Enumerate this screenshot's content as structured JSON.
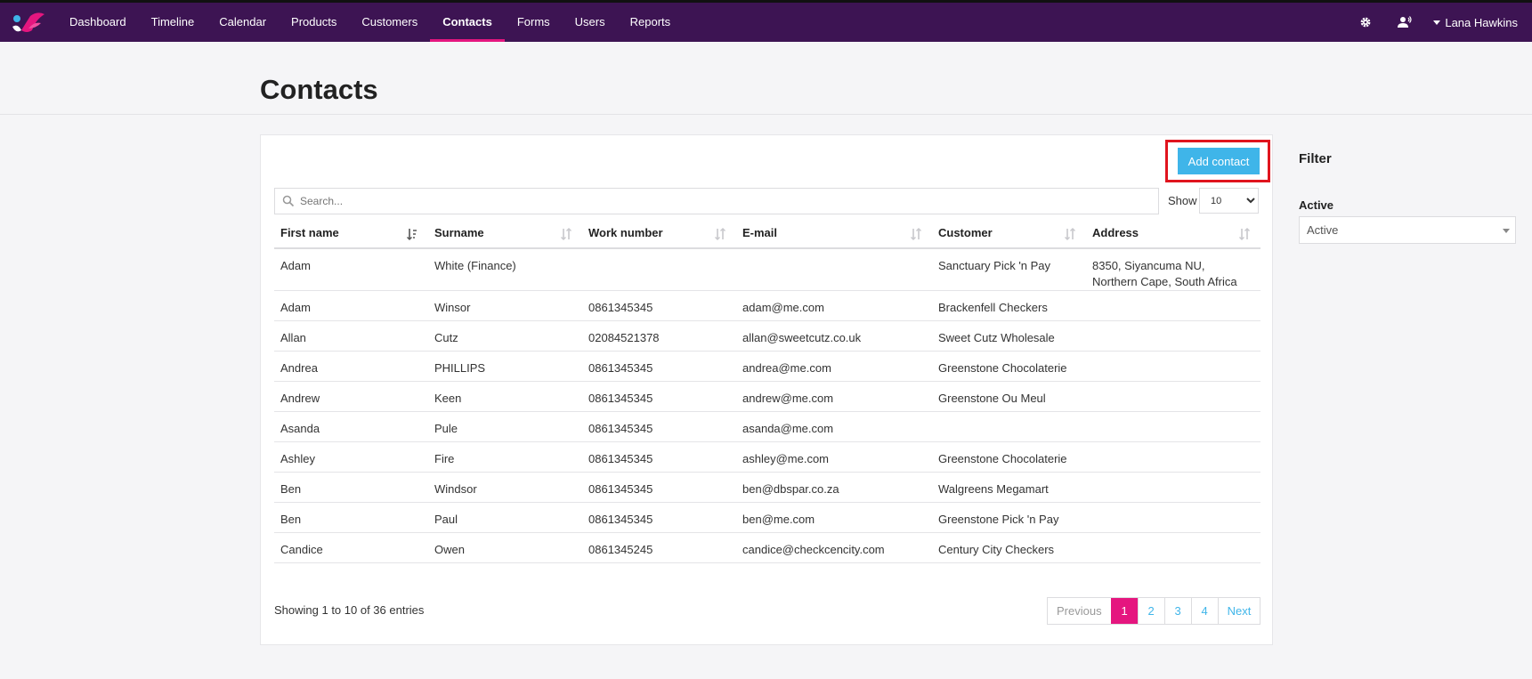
{
  "nav": {
    "items": [
      {
        "label": "Dashboard",
        "active": false
      },
      {
        "label": "Timeline",
        "active": false
      },
      {
        "label": "Calendar",
        "active": false
      },
      {
        "label": "Products",
        "active": false
      },
      {
        "label": "Customers",
        "active": false
      },
      {
        "label": "Contacts",
        "active": true
      },
      {
        "label": "Forms",
        "active": false
      },
      {
        "label": "Users",
        "active": false
      },
      {
        "label": "Reports",
        "active": false
      }
    ],
    "user_name": "Lana Hawkins",
    "icons": [
      "gear-icon",
      "user-voice-icon"
    ],
    "bg_color": "#3d1453",
    "accent_color": "#e5167f"
  },
  "page": {
    "title": "Contacts"
  },
  "toolbar": {
    "add_label": "Add contact",
    "add_color": "#3fb5e9"
  },
  "search": {
    "placeholder": "Search...",
    "show_label": "Show",
    "show_value": "10"
  },
  "table": {
    "columns": [
      "First name",
      "Surname",
      "Work number",
      "E-mail",
      "Customer",
      "Address"
    ],
    "rows": [
      [
        "Adam",
        "White (Finance)",
        "",
        "",
        "Sanctuary Pick 'n Pay",
        "8350, Siyancuma NU,\nNorthern Cape, South Africa"
      ],
      [
        "Adam",
        "Winsor",
        "0861345345",
        "adam@me.com",
        "Brackenfell Checkers",
        ""
      ],
      [
        "Allan",
        "Cutz",
        "02084521378",
        "allan@sweetcutz.co.uk",
        "Sweet Cutz Wholesale",
        ""
      ],
      [
        "Andrea",
        "PHILLIPS",
        "0861345345",
        "andrea@me.com",
        "Greenstone Chocolaterie",
        ""
      ],
      [
        "Andrew",
        "Keen",
        "0861345345",
        "andrew@me.com",
        "Greenstone Ou Meul",
        ""
      ],
      [
        "Asanda",
        "Pule",
        "0861345345",
        "asanda@me.com",
        "",
        ""
      ],
      [
        "Ashley",
        "Fire",
        "0861345345",
        "ashley@me.com",
        "Greenstone Chocolaterie",
        ""
      ],
      [
        "Ben",
        "Windsor",
        "0861345345",
        "ben@dbspar.co.za",
        "Walgreens Megamart",
        ""
      ],
      [
        "Ben",
        "Paul",
        "0861345345",
        "ben@me.com",
        "Greenstone Pick 'n Pay",
        ""
      ],
      [
        "Candice",
        "Owen",
        "0861345245",
        "candice@checkcencity.com",
        "Century City Checkers",
        ""
      ]
    ]
  },
  "footer": {
    "info": "Showing 1 to 10 of 36 entries",
    "pages": [
      "Previous",
      "1",
      "2",
      "3",
      "4",
      "Next"
    ],
    "current_page": "1"
  },
  "filter": {
    "title": "Filter",
    "active_label": "Active",
    "active_value": "Active"
  }
}
